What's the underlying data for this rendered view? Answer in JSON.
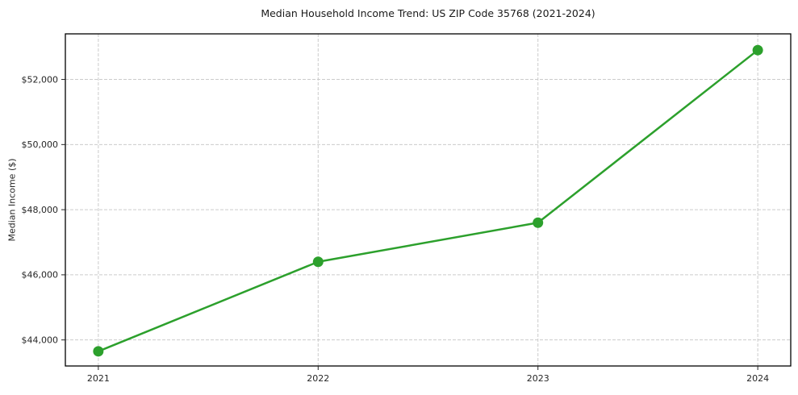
{
  "chart_data": {
    "type": "line",
    "title": "Median Household Income Trend: US ZIP Code 35768 (2021-2024)",
    "xlabel": "",
    "ylabel": "Median Income ($)",
    "x": [
      2021,
      2022,
      2023,
      2024
    ],
    "xtick_labels": [
      "2021",
      "2022",
      "2023",
      "2024"
    ],
    "series": [
      {
        "name": "Median Income",
        "values": [
          43650,
          46400,
          47600,
          52900
        ],
        "color": "#2ca02c",
        "marker": "circle"
      }
    ],
    "yticks": [
      44000,
      46000,
      48000,
      50000,
      52000
    ],
    "ytick_labels": [
      "$44,000",
      "$46,000",
      "$48,000",
      "$50,000",
      "$52,000"
    ],
    "xlim": [
      2020.85,
      2024.15
    ],
    "ylim": [
      43200,
      53400
    ],
    "grid": true,
    "grid_style": "dashed",
    "legend": "none",
    "colors": {
      "line": "#2ca02c",
      "grid": "#cccccc",
      "spine": "#000000",
      "tick_label": "#262626",
      "title": "#1a1a1a",
      "background": "#ffffff"
    }
  }
}
